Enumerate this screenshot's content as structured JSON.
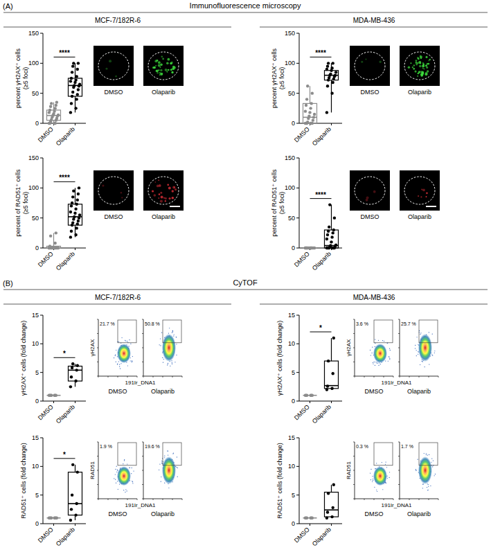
{
  "figure": {
    "sections": [
      {
        "letter": "(A)",
        "title": "Immunofluorescence microscopy",
        "columns": [
          "MCF-7/182R-6",
          "MDA-MB-436"
        ]
      },
      {
        "letter": "(B)",
        "title": "CyTOF",
        "columns": [
          "MCF-7/182R-6",
          "MDA-MB-436"
        ]
      }
    ],
    "micrographs": [
      {
        "conditions": [
          "DMSO",
          "Olaparib"
        ]
      },
      {
        "conditions": [
          "DMSO",
          "Olaparib"
        ]
      },
      {
        "conditions": [
          "DMSO",
          "Olaparib"
        ]
      },
      {
        "conditions": [
          "DMSO",
          "Olaparib"
        ]
      }
    ],
    "flow_plots": [
      {
        "y_label": "γH2AX",
        "x_label": "191Ir_DNA1",
        "conditions": [
          "DMSO",
          "Olaparib"
        ],
        "gate_labels": [
          "21.7 %",
          "50.8 %"
        ]
      },
      {
        "y_label": "RAD51",
        "x_label": "191Ir_DNA1",
        "conditions": [
          "DMSO",
          "Olaparib"
        ],
        "gate_labels": [
          "1.9 %",
          "19.6 %"
        ]
      },
      {
        "y_label": "γH2AX",
        "x_label": "191Ir_DNA1",
        "conditions": [
          "DMSO",
          "Olaparib"
        ],
        "gate_labels": [
          "3.6 %",
          "25.7 %"
        ]
      },
      {
        "y_label": "RAD51",
        "x_label": "191Ir_DNA1",
        "conditions": [
          "DMSO",
          "Olaparib"
        ],
        "gate_labels": [
          "0.3 %",
          "1.7 %"
        ]
      }
    ]
  },
  "chart_data": [
    {
      "type": "box",
      "ylabel": "percent γH2AX⁺ cells (≥5 foci)",
      "categories": [
        "DMSO",
        "Olaparib"
      ],
      "ylim": [
        0,
        150
      ],
      "yticks": [
        0,
        50,
        100,
        150
      ],
      "colors": [
        "#8c8c8c",
        "#000000"
      ],
      "annotation": "****",
      "boxes": [
        {
          "min": 0,
          "q1": 5,
          "median": 13,
          "q3": 22,
          "max": 35
        },
        {
          "min": 18,
          "q1": 45,
          "median": 63,
          "q3": 75,
          "max": 100
        }
      ],
      "points": [
        [
          0,
          0,
          0,
          0,
          3,
          5,
          6,
          8,
          10,
          12,
          13,
          14,
          16,
          18,
          20,
          22,
          25,
          28,
          30,
          33,
          35
        ],
        [
          18,
          25,
          33,
          40,
          45,
          48,
          52,
          56,
          60,
          62,
          63,
          65,
          68,
          70,
          72,
          75,
          78,
          85,
          90,
          95,
          100,
          100
        ]
      ]
    },
    {
      "type": "box",
      "ylabel": "percent of RAD51⁺ cells (≥5 foci)",
      "categories": [
        "DMSO",
        "Olaparib"
      ],
      "ylim": [
        0,
        150
      ],
      "yticks": [
        0,
        50,
        100,
        150
      ],
      "colors": [
        "#8c8c8c",
        "#000000"
      ],
      "annotation": "****",
      "boxes": [
        {
          "min": 0,
          "q1": 0,
          "median": 0,
          "q3": 3,
          "max": 25
        },
        {
          "min": 18,
          "q1": 38,
          "median": 52,
          "q3": 73,
          "max": 100
        }
      ],
      "points": [
        [
          0,
          0,
          0,
          0,
          0,
          0,
          0,
          0,
          0,
          0,
          0,
          0,
          0,
          0,
          0,
          3,
          8,
          20,
          25
        ],
        [
          18,
          22,
          28,
          33,
          38,
          40,
          42,
          45,
          48,
          50,
          52,
          55,
          58,
          60,
          65,
          70,
          73,
          75,
          80,
          85,
          90,
          95,
          100
        ]
      ]
    },
    {
      "type": "box",
      "ylabel": "percent γH2AX⁺ cells (≥5 foci)",
      "categories": [
        "DMSO",
        "Olaparib"
      ],
      "ylim": [
        0,
        150
      ],
      "yticks": [
        0,
        50,
        100,
        150
      ],
      "colors": [
        "#8c8c8c",
        "#000000"
      ],
      "annotation": "****",
      "boxes": [
        {
          "min": 0,
          "q1": 0,
          "median": 10,
          "q3": 33,
          "max": 62
        },
        {
          "min": 18,
          "q1": 72,
          "median": 80,
          "q3": 88,
          "max": 100
        }
      ],
      "points": [
        [
          0,
          0,
          0,
          0,
          0,
          0,
          2,
          5,
          8,
          10,
          12,
          15,
          18,
          20,
          25,
          30,
          33,
          40,
          50,
          62
        ],
        [
          18,
          50,
          62,
          68,
          72,
          74,
          76,
          78,
          80,
          80,
          82,
          85,
          88,
          90,
          92,
          95,
          100,
          100
        ]
      ]
    },
    {
      "type": "box",
      "ylabel": "percent of RAD51⁺ cells (≥5 foci)",
      "categories": [
        "DMSO",
        "Olaparib"
      ],
      "ylim": [
        0,
        150
      ],
      "yticks": [
        0,
        50,
        100,
        150
      ],
      "colors": [
        "#8c8c8c",
        "#000000"
      ],
      "annotation": "****",
      "boxes": [
        {
          "min": 0,
          "q1": 0,
          "median": 0,
          "q3": 0,
          "max": 0
        },
        {
          "min": 0,
          "q1": 0,
          "median": 4,
          "q3": 30,
          "max": 72
        }
      ],
      "points": [
        [
          0,
          0,
          0,
          0,
          0,
          0,
          0,
          0,
          0,
          0,
          0,
          0,
          0,
          0,
          0,
          0,
          0,
          0
        ],
        [
          0,
          0,
          0,
          0,
          0,
          0,
          0,
          0,
          2,
          3,
          4,
          5,
          10,
          15,
          18,
          22,
          25,
          28,
          30,
          35,
          50,
          72
        ]
      ]
    },
    {
      "type": "box",
      "ylabel": "γH2AX⁺ cells (fold change)",
      "categories": [
        "DMSO",
        "Olaparib"
      ],
      "ylim": [
        0,
        15
      ],
      "yticks": [
        0,
        5,
        10,
        15
      ],
      "colors": [
        "#8c8c8c",
        "#000000"
      ],
      "annotation": "*",
      "boxes": [
        {
          "min": 1,
          "q1": 1,
          "median": 1,
          "q3": 1,
          "max": 1
        },
        {
          "min": 2.5,
          "q1": 3.5,
          "median": 5.4,
          "q3": 6.1,
          "max": 6.5
        }
      ],
      "points": [
        [
          1,
          1,
          1,
          1,
          1,
          1,
          1
        ],
        [
          2.5,
          3.5,
          4.2,
          5.4,
          5.8,
          6.2,
          6.5
        ]
      ]
    },
    {
      "type": "box",
      "ylabel": "RAD51⁺ cells (fold change)",
      "categories": [
        "DMSO",
        "Olaparib"
      ],
      "ylim": [
        0,
        15
      ],
      "yticks": [
        0,
        5,
        10,
        15
      ],
      "colors": [
        "#8c8c8c",
        "#000000"
      ],
      "annotation": "*",
      "boxes": [
        {
          "min": 1,
          "q1": 1,
          "median": 1,
          "q3": 1,
          "max": 1
        },
        {
          "min": 0.6,
          "q1": 1.5,
          "median": 3.5,
          "q3": 9,
          "max": 10.3
        }
      ],
      "points": [
        [
          1,
          1,
          1,
          1,
          1,
          1,
          1,
          1
        ],
        [
          0.6,
          1.5,
          2.5,
          3.5,
          5,
          9,
          10.3
        ]
      ]
    },
    {
      "type": "box",
      "ylabel": "γH2AX⁺ cells (fold change)",
      "categories": [
        "DMSO",
        "Olaparib"
      ],
      "ylim": [
        0,
        15
      ],
      "yticks": [
        0,
        5,
        10,
        15
      ],
      "colors": [
        "#8c8c8c",
        "#000000"
      ],
      "annotation": "*",
      "boxes": [
        {
          "min": 1,
          "q1": 1,
          "median": 1,
          "q3": 1,
          "max": 1
        },
        {
          "min": 2,
          "q1": 2.2,
          "median": 2.7,
          "q3": 7,
          "max": 11
        }
      ],
      "points": [
        [
          1,
          1,
          1,
          1,
          1,
          1
        ],
        [
          2,
          2.2,
          2.6,
          4.8,
          7,
          11
        ]
      ]
    },
    {
      "type": "box",
      "ylabel": "RAD51⁺ cells (fold change)",
      "categories": [
        "DMSO",
        "Olaparib"
      ],
      "ylim": [
        0,
        15
      ],
      "yticks": [
        0,
        5,
        10,
        15
      ],
      "colors": [
        "#8c8c8c",
        "#000000"
      ],
      "boxes": [
        {
          "min": 1,
          "q1": 1,
          "median": 1,
          "q3": 1,
          "max": 1
        },
        {
          "min": 1,
          "q1": 1.2,
          "median": 2.4,
          "q3": 5.5,
          "max": 6.8
        }
      ],
      "points": [
        [
          1,
          1,
          1,
          1,
          1,
          1
        ],
        [
          1,
          1.2,
          2,
          2.8,
          5.3,
          6.8
        ]
      ]
    }
  ]
}
